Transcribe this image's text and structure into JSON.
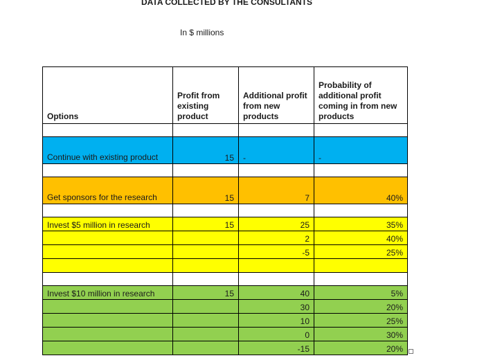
{
  "title": "DATA COLLECTED BY THE CONSULTANTS",
  "subtitle": "In $ millions",
  "headers": {
    "options": "Options",
    "profit_existing": "Profit from existing product",
    "additional_profit": "Additional profit from new products",
    "probability": "Probability of additional profit coming in from new products"
  },
  "rows": {
    "continue": {
      "option": "Continue with existing product",
      "profit": "15",
      "additional": "-",
      "probability": "-"
    },
    "sponsors": {
      "option": "Get sponsors for the research",
      "profit": "15",
      "additional": "7",
      "probability": "40%"
    },
    "invest5": {
      "option": "Invest $5 million in research",
      "profit": "15",
      "outcomes": [
        {
          "additional": "25",
          "probability": "35%"
        },
        {
          "additional": "2",
          "probability": "40%"
        },
        {
          "additional": "-5",
          "probability": "25%"
        }
      ]
    },
    "invest10": {
      "option": "Invest $10 million in research",
      "profit": "15",
      "outcomes": [
        {
          "additional": "40",
          "probability": "5%"
        },
        {
          "additional": "30",
          "probability": "20%"
        },
        {
          "additional": "10",
          "probability": "25%"
        },
        {
          "additional": "0",
          "probability": "30%"
        },
        {
          "additional": "-15",
          "probability": "20%"
        }
      ]
    }
  },
  "colors": {
    "continue": "#00b0f0",
    "sponsors": "#ffc000",
    "invest5": "#ffff00",
    "invest10": "#92d050"
  }
}
